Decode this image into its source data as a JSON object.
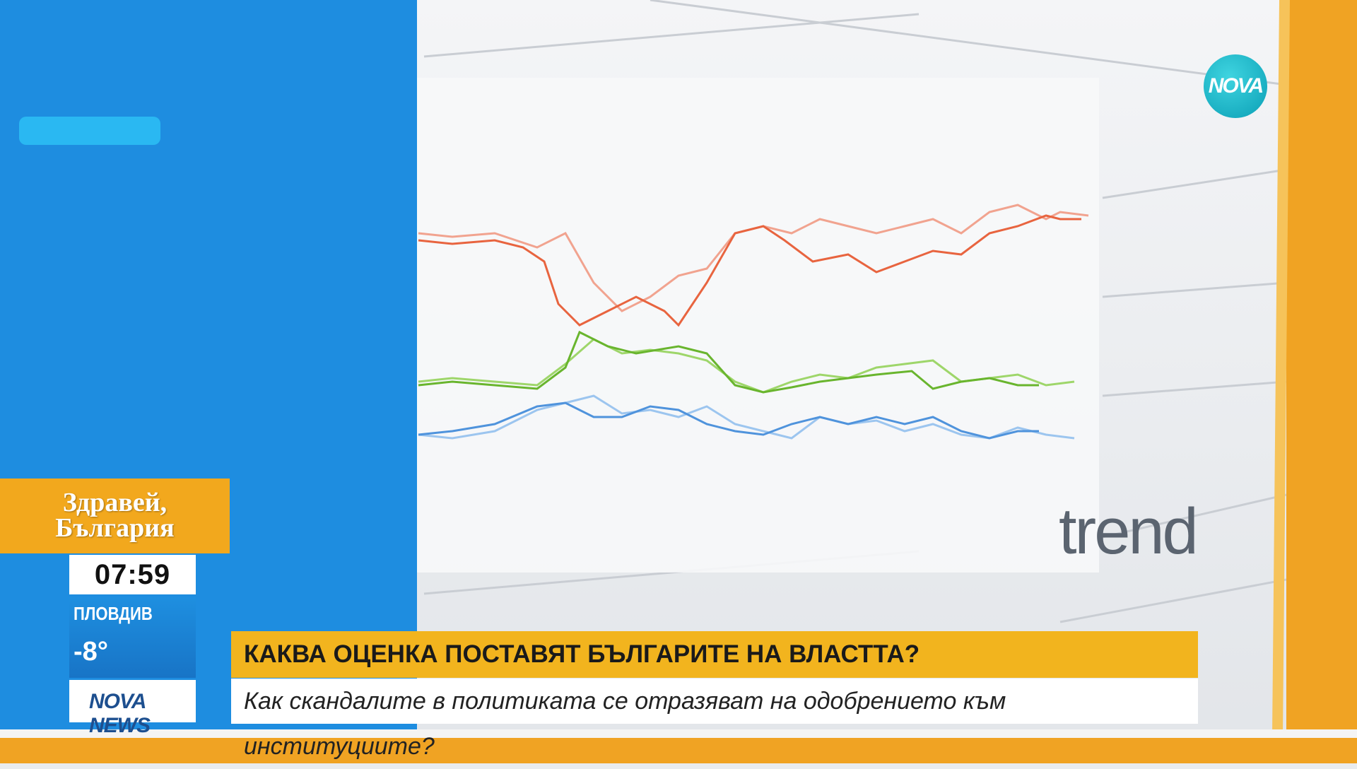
{
  "channel_logo": "NOVA",
  "show": {
    "lines": [
      "Здравей,",
      "България"
    ]
  },
  "clock": "07:59",
  "weather": {
    "city": "ПЛОВДИВ",
    "temperature": "-8°"
  },
  "news_logo": "NOVA NEWS",
  "lower_third": {
    "headline": "КАКВА ОЦЕНКА ПОСТАВЯТ БЪЛГАРИТЕ НА ВЛАСТТА?",
    "subheadline": "Как скандалите в политиката се отразяват на одобрението към институциите?"
  },
  "screen": {
    "logo": "trend"
  }
}
